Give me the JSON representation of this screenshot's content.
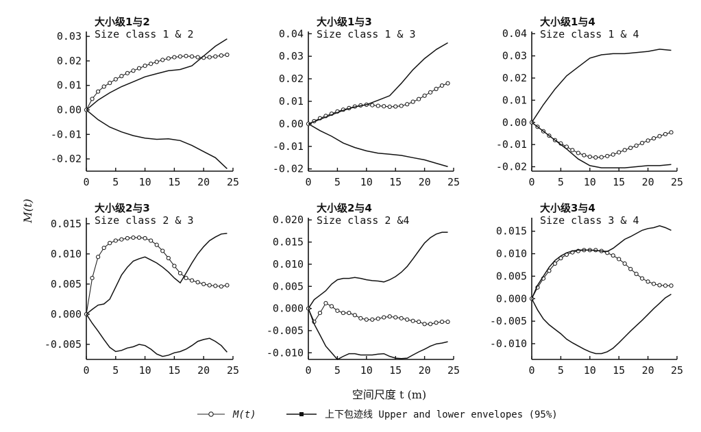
{
  "figure": {
    "ylabel": "M(t)",
    "xlabel": "空间尺度 t (m)",
    "legend": {
      "mt_label": "M(t)",
      "envelope_label": "上下包迹线 Upper and lower envelopes (95%)"
    }
  },
  "chart_data": [
    {
      "type": "line",
      "title_cn": "大小级1与2",
      "title_en": "Size class 1 & 2",
      "xlim": [
        0,
        25
      ],
      "ylim": [
        -0.025,
        0.032
      ],
      "xticks": [
        0,
        5,
        10,
        15,
        20,
        25
      ],
      "xtick_labels": [
        "0",
        "5",
        "10",
        "15",
        "20",
        "25"
      ],
      "yticks": [
        -0.02,
        -0.01,
        0.0,
        0.01,
        0.02,
        0.03
      ],
      "ytick_labels": [
        "-0.02",
        "-0.01",
        "0.00",
        "0.01",
        "0.02",
        "0.03"
      ],
      "series": [
        {
          "role": "mt",
          "x": [
            0,
            1,
            2,
            3,
            4,
            5,
            6,
            7,
            8,
            9,
            10,
            11,
            12,
            13,
            14,
            15,
            16,
            17,
            18,
            19,
            20,
            21,
            22,
            23,
            24
          ],
          "y": [
            0,
            0.0045,
            0.0075,
            0.0095,
            0.011,
            0.0125,
            0.0138,
            0.015,
            0.016,
            0.017,
            0.018,
            0.0188,
            0.0196,
            0.0204,
            0.021,
            0.0215,
            0.0218,
            0.022,
            0.0218,
            0.0215,
            0.0213,
            0.0215,
            0.0218,
            0.0222,
            0.0225
          ]
        },
        {
          "role": "upper",
          "x": [
            0,
            2,
            4,
            6,
            8,
            10,
            12,
            14,
            16,
            18,
            20,
            22,
            24
          ],
          "y": [
            0,
            0.004,
            0.007,
            0.0095,
            0.0115,
            0.0135,
            0.0148,
            0.016,
            0.0165,
            0.018,
            0.022,
            0.026,
            0.029
          ]
        },
        {
          "role": "lower",
          "x": [
            0,
            2,
            4,
            6,
            8,
            10,
            12,
            14,
            16,
            18,
            20,
            22,
            24
          ],
          "y": [
            0,
            -0.004,
            -0.007,
            -0.009,
            -0.0105,
            -0.0115,
            -0.012,
            -0.0118,
            -0.0125,
            -0.0145,
            -0.017,
            -0.0195,
            -0.024
          ]
        }
      ]
    },
    {
      "type": "line",
      "title_cn": "大小级1与3",
      "title_en": "Size class 1 & 3",
      "xlim": [
        0,
        25
      ],
      "ylim": [
        -0.021,
        0.041
      ],
      "xticks": [
        0,
        5,
        10,
        15,
        20,
        25
      ],
      "xtick_labels": [
        "0",
        "5",
        "10",
        "15",
        "20",
        "25"
      ],
      "yticks": [
        -0.02,
        -0.01,
        0.0,
        0.01,
        0.02,
        0.03,
        0.04
      ],
      "ytick_labels": [
        "-0.02",
        "-0.01",
        "0.00",
        "0.01",
        "0.02",
        "0.03",
        "0.04"
      ],
      "series": [
        {
          "role": "mt",
          "x": [
            0,
            1,
            2,
            3,
            4,
            5,
            6,
            7,
            8,
            9,
            10,
            11,
            12,
            13,
            14,
            15,
            16,
            17,
            18,
            19,
            20,
            21,
            22,
            23,
            24
          ],
          "y": [
            0,
            0.0012,
            0.0025,
            0.0035,
            0.0045,
            0.0055,
            0.0063,
            0.007,
            0.0077,
            0.0082,
            0.0085,
            0.0083,
            0.008,
            0.0078,
            0.0076,
            0.0077,
            0.008,
            0.0087,
            0.0098,
            0.011,
            0.0125,
            0.014,
            0.0155,
            0.017,
            0.018
          ]
        },
        {
          "role": "upper",
          "x": [
            0,
            2,
            4,
            6,
            8,
            10,
            12,
            14,
            16,
            18,
            20,
            22,
            24
          ],
          "y": [
            0,
            0.002,
            0.004,
            0.006,
            0.0075,
            0.0085,
            0.0105,
            0.0125,
            0.018,
            0.024,
            0.029,
            0.033,
            0.036
          ]
        },
        {
          "role": "lower",
          "x": [
            0,
            2,
            4,
            6,
            8,
            10,
            12,
            14,
            16,
            18,
            20,
            22,
            24
          ],
          "y": [
            0,
            -0.003,
            -0.0055,
            -0.0085,
            -0.0105,
            -0.012,
            -0.013,
            -0.0135,
            -0.014,
            -0.015,
            -0.016,
            -0.0175,
            -0.019
          ]
        }
      ]
    },
    {
      "type": "line",
      "title_cn": "大小级1与4",
      "title_en": "Size class 1 & 4",
      "xlim": [
        0,
        25
      ],
      "ylim": [
        -0.022,
        0.041
      ],
      "xticks": [
        0,
        5,
        10,
        15,
        20,
        25
      ],
      "xtick_labels": [
        "0",
        "5",
        "10",
        "15",
        "20",
        "25"
      ],
      "yticks": [
        -0.02,
        -0.01,
        0.0,
        0.01,
        0.02,
        0.03,
        0.04
      ],
      "ytick_labels": [
        "-0.02",
        "-0.01",
        "0.00",
        "0.01",
        "0.02",
        "0.03",
        "0.04"
      ],
      "series": [
        {
          "role": "mt",
          "x": [
            0,
            1,
            2,
            3,
            4,
            5,
            6,
            7,
            8,
            9,
            10,
            11,
            12,
            13,
            14,
            15,
            16,
            17,
            18,
            19,
            20,
            21,
            22,
            23,
            24
          ],
          "y": [
            0,
            -0.002,
            -0.004,
            -0.006,
            -0.008,
            -0.0095,
            -0.011,
            -0.0125,
            -0.0138,
            -0.0148,
            -0.0155,
            -0.0158,
            -0.0157,
            -0.0152,
            -0.0145,
            -0.0135,
            -0.0125,
            -0.0115,
            -0.0105,
            -0.0093,
            -0.0082,
            -0.0072,
            -0.0062,
            -0.0053,
            -0.0045
          ]
        },
        {
          "role": "upper",
          "x": [
            0,
            2,
            4,
            6,
            8,
            10,
            12,
            14,
            16,
            18,
            20,
            22,
            24
          ],
          "y": [
            0,
            0.008,
            0.015,
            0.021,
            0.025,
            0.029,
            0.0305,
            0.031,
            0.031,
            0.0315,
            0.032,
            0.033,
            0.0325
          ]
        },
        {
          "role": "lower",
          "x": [
            0,
            2,
            4,
            6,
            8,
            10,
            12,
            14,
            16,
            18,
            20,
            22,
            24
          ],
          "y": [
            0,
            -0.004,
            -0.008,
            -0.012,
            -0.0165,
            -0.0195,
            -0.0205,
            -0.0205,
            -0.0205,
            -0.02,
            -0.0195,
            -0.0195,
            -0.019
          ]
        }
      ]
    },
    {
      "type": "line",
      "title_cn": "大小级2与3",
      "title_en": "Size class 2 & 3",
      "xlim": [
        0,
        25
      ],
      "ylim": [
        -0.0075,
        0.016
      ],
      "xticks": [
        0,
        5,
        10,
        15,
        20,
        25
      ],
      "xtick_labels": [
        "0",
        "5",
        "10",
        "15",
        "20",
        "25"
      ],
      "yticks": [
        -0.005,
        0.0,
        0.005,
        0.01,
        0.015
      ],
      "ytick_labels": [
        "-0.005",
        "0.000",
        "0.005",
        "0.010",
        "0.015"
      ],
      "series": [
        {
          "role": "mt",
          "x": [
            0,
            1,
            2,
            3,
            4,
            5,
            6,
            7,
            8,
            9,
            10,
            11,
            12,
            13,
            14,
            15,
            16,
            17,
            18,
            19,
            20,
            21,
            22,
            23,
            24
          ],
          "y": [
            0,
            0.006,
            0.0095,
            0.011,
            0.0118,
            0.0122,
            0.0124,
            0.0126,
            0.0127,
            0.0127,
            0.0126,
            0.0122,
            0.0115,
            0.0105,
            0.0093,
            0.008,
            0.0068,
            0.006,
            0.0056,
            0.0053,
            0.005,
            0.0048,
            0.0047,
            0.0046,
            0.0048
          ]
        },
        {
          "role": "upper",
          "x": [
            0,
            1,
            2,
            3,
            4,
            5,
            6,
            7,
            8,
            9,
            10,
            11,
            12,
            13,
            14,
            15,
            16,
            17,
            18,
            19,
            20,
            21,
            22,
            23,
            24
          ],
          "y": [
            0,
            0.0008,
            0.0015,
            0.0017,
            0.0025,
            0.0045,
            0.0065,
            0.0078,
            0.0088,
            0.0092,
            0.0095,
            0.009,
            0.0085,
            0.0078,
            0.007,
            0.006,
            0.0052,
            0.0068,
            0.0085,
            0.01,
            0.0112,
            0.0122,
            0.0128,
            0.0133,
            0.0134
          ]
        },
        {
          "role": "lower",
          "x": [
            0,
            1,
            2,
            3,
            4,
            5,
            6,
            7,
            8,
            9,
            10,
            11,
            12,
            13,
            14,
            15,
            16,
            17,
            18,
            19,
            20,
            21,
            22,
            23,
            24
          ],
          "y": [
            0,
            -0.0015,
            -0.0028,
            -0.0042,
            -0.0055,
            -0.0062,
            -0.006,
            -0.0056,
            -0.0054,
            -0.005,
            -0.0052,
            -0.0058,
            -0.0066,
            -0.007,
            -0.0068,
            -0.0064,
            -0.0062,
            -0.0058,
            -0.0052,
            -0.0045,
            -0.0042,
            -0.004,
            -0.0045,
            -0.0052,
            -0.0063
          ]
        }
      ]
    },
    {
      "type": "line",
      "title_cn": "大小级2与4",
      "title_en": "Size class 2 &4",
      "xlim": [
        0,
        25
      ],
      "ylim": [
        -0.0115,
        0.0205
      ],
      "xticks": [
        0,
        5,
        10,
        15,
        20,
        25
      ],
      "xtick_labels": [
        "0",
        "5",
        "10",
        "15",
        "20",
        "25"
      ],
      "yticks": [
        -0.01,
        -0.005,
        0.0,
        0.005,
        0.01,
        0.015,
        0.02
      ],
      "ytick_labels": [
        "-0.010",
        "-0.005",
        "0.000",
        "0.005",
        "0.010",
        "0.015",
        "0.020"
      ],
      "series": [
        {
          "role": "mt",
          "x": [
            0,
            1,
            2,
            3,
            4,
            5,
            6,
            7,
            8,
            9,
            10,
            11,
            12,
            13,
            14,
            15,
            16,
            17,
            18,
            19,
            20,
            21,
            22,
            23,
            24
          ],
          "y": [
            0,
            -0.003,
            -0.001,
            0.0012,
            0.0005,
            -0.0005,
            -0.001,
            -0.001,
            -0.0015,
            -0.0022,
            -0.0025,
            -0.0025,
            -0.0023,
            -0.002,
            -0.0018,
            -0.002,
            -0.0022,
            -0.0025,
            -0.0028,
            -0.003,
            -0.0035,
            -0.0035,
            -0.0032,
            -0.003,
            -0.003
          ]
        },
        {
          "role": "upper",
          "x": [
            0,
            1,
            2,
            3,
            4,
            5,
            6,
            7,
            8,
            9,
            10,
            11,
            12,
            13,
            14,
            15,
            16,
            17,
            18,
            19,
            20,
            21,
            22,
            23,
            24
          ],
          "y": [
            0,
            0.002,
            0.003,
            0.004,
            0.0055,
            0.0065,
            0.0068,
            0.0068,
            0.007,
            0.0068,
            0.0065,
            0.0063,
            0.0062,
            0.006,
            0.0065,
            0.0072,
            0.0082,
            0.0095,
            0.0112,
            0.013,
            0.0148,
            0.016,
            0.0168,
            0.0172,
            0.0172
          ]
        },
        {
          "role": "lower",
          "x": [
            0,
            1,
            2,
            3,
            4,
            5,
            6,
            7,
            8,
            9,
            10,
            11,
            12,
            13,
            14,
            15,
            16,
            17,
            18,
            19,
            20,
            21,
            22,
            23,
            24
          ],
          "y": [
            0,
            -0.0035,
            -0.006,
            -0.0085,
            -0.01,
            -0.0115,
            -0.0108,
            -0.0102,
            -0.0102,
            -0.0105,
            -0.0105,
            -0.0105,
            -0.0103,
            -0.0102,
            -0.0108,
            -0.0112,
            -0.0113,
            -0.0112,
            -0.0105,
            -0.0098,
            -0.0092,
            -0.0085,
            -0.008,
            -0.0078,
            -0.0075
          ]
        }
      ]
    },
    {
      "type": "line",
      "title_cn": "大小级3与4",
      "title_en": "Size class 3 & 4",
      "xlim": [
        0,
        25
      ],
      "ylim": [
        -0.0135,
        0.018
      ],
      "xticks": [
        0,
        5,
        10,
        15,
        20,
        25
      ],
      "xtick_labels": [
        "0",
        "5",
        "10",
        "15",
        "20",
        "25"
      ],
      "yticks": [
        -0.01,
        -0.005,
        0.0,
        0.005,
        0.01,
        0.015
      ],
      "ytick_labels": [
        "-0.010",
        "-0.005",
        "0.000",
        "0.005",
        "0.010",
        "0.015"
      ],
      "series": [
        {
          "role": "mt",
          "x": [
            0,
            1,
            2,
            3,
            4,
            5,
            6,
            7,
            8,
            9,
            10,
            11,
            12,
            13,
            14,
            15,
            16,
            17,
            18,
            19,
            20,
            21,
            22,
            23,
            24
          ],
          "y": [
            0,
            0.0025,
            0.0045,
            0.0062,
            0.0078,
            0.009,
            0.0098,
            0.0103,
            0.0106,
            0.0108,
            0.0108,
            0.0108,
            0.0106,
            0.0102,
            0.0096,
            0.0088,
            0.0078,
            0.0066,
            0.0055,
            0.0045,
            0.0038,
            0.0033,
            0.003,
            0.0029,
            0.0029
          ]
        },
        {
          "role": "upper",
          "x": [
            0,
            1,
            2,
            3,
            4,
            5,
            6,
            7,
            8,
            9,
            10,
            11,
            12,
            13,
            14,
            15,
            16,
            17,
            18,
            19,
            20,
            21,
            22,
            23,
            24
          ],
          "y": [
            0,
            0.003,
            0.005,
            0.007,
            0.0085,
            0.0095,
            0.0102,
            0.0106,
            0.0108,
            0.0108,
            0.0108,
            0.0107,
            0.0106,
            0.0105,
            0.0112,
            0.0122,
            0.0132,
            0.0138,
            0.0145,
            0.0152,
            0.0156,
            0.0158,
            0.0162,
            0.0158,
            0.0152
          ]
        },
        {
          "role": "lower",
          "x": [
            0,
            1,
            2,
            3,
            4,
            5,
            6,
            7,
            8,
            9,
            10,
            11,
            12,
            13,
            14,
            15,
            16,
            17,
            18,
            19,
            20,
            21,
            22,
            23,
            24
          ],
          "y": [
            0,
            -0.0025,
            -0.0045,
            -0.0058,
            -0.0068,
            -0.0078,
            -0.009,
            -0.0098,
            -0.0105,
            -0.0112,
            -0.0118,
            -0.0122,
            -0.0122,
            -0.0118,
            -0.011,
            -0.0098,
            -0.0085,
            -0.0072,
            -0.006,
            -0.0048,
            -0.0035,
            -0.0022,
            -0.001,
            0.0002,
            0.001
          ]
        }
      ]
    }
  ]
}
